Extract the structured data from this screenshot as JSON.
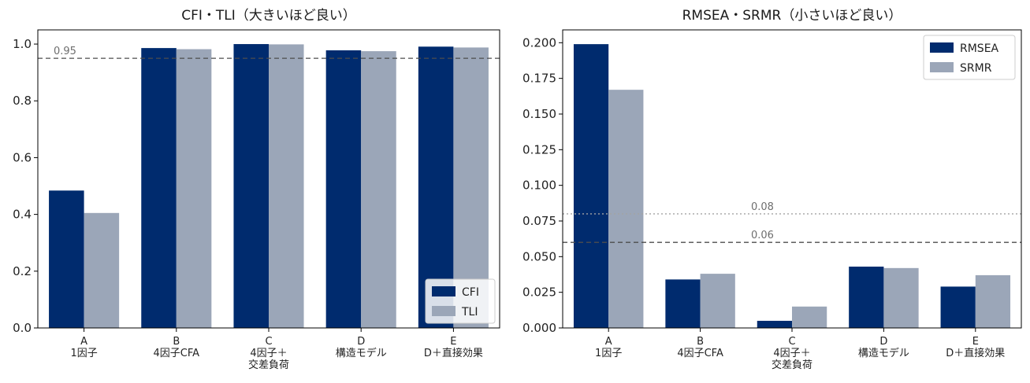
{
  "colors": {
    "primary": "#002b6e",
    "secondary": "#9ba6b8",
    "ref_line_dark": "#4d4d4d",
    "ref_line_light": "#a3a3a3"
  },
  "chart_data": [
    {
      "type": "bar",
      "title": "CFI・TLI（大きいほど良い）",
      "categories": [
        [
          "A",
          "1因子"
        ],
        [
          "B",
          "4因子CFA"
        ],
        [
          "C",
          "4因子＋",
          "交差負荷"
        ],
        [
          "D",
          "構造モデル"
        ],
        [
          "E",
          "D＋直接効果"
        ]
      ],
      "series": [
        {
          "name": "CFI",
          "values": [
            0.484,
            0.986,
            1.0,
            0.978,
            0.991
          ]
        },
        {
          "name": "TLI",
          "values": [
            0.405,
            0.982,
            0.999,
            0.975,
            0.988
          ]
        }
      ],
      "ylim": [
        0,
        1.05
      ],
      "yticks": [
        "0.0",
        "0.2",
        "0.4",
        "0.6",
        "0.8",
        "1.0"
      ],
      "ytick_values": [
        0,
        0.2,
        0.4,
        0.6,
        0.8,
        1.0
      ],
      "reference_lines": [
        {
          "value": 0.95,
          "label": "0.95",
          "style": "dashed"
        }
      ],
      "legend_position": "lower-right",
      "grid": false
    },
    {
      "type": "bar",
      "title": "RMSEA・SRMR（小さいほど良い）",
      "categories": [
        [
          "A",
          "1因子"
        ],
        [
          "B",
          "4因子CFA"
        ],
        [
          "C",
          "4因子＋",
          "交差負荷"
        ],
        [
          "D",
          "構造モデル"
        ],
        [
          "E",
          "D＋直接効果"
        ]
      ],
      "series": [
        {
          "name": "RMSEA",
          "values": [
            0.199,
            0.034,
            0.005,
            0.043,
            0.029
          ]
        },
        {
          "name": "SRMR",
          "values": [
            0.167,
            0.038,
            0.015,
            0.042,
            0.037
          ]
        }
      ],
      "ylim": [
        0,
        0.209
      ],
      "yticks": [
        "0.000",
        "0.025",
        "0.050",
        "0.075",
        "0.100",
        "0.125",
        "0.150",
        "0.175",
        "0.200"
      ],
      "ytick_values": [
        0,
        0.025,
        0.05,
        0.075,
        0.1,
        0.125,
        0.15,
        0.175,
        0.2
      ],
      "reference_lines": [
        {
          "value": 0.08,
          "label": "0.08",
          "style": "dotted"
        },
        {
          "value": 0.06,
          "label": "0.06",
          "style": "dashed"
        }
      ],
      "legend_position": "upper-right",
      "grid": false
    }
  ]
}
